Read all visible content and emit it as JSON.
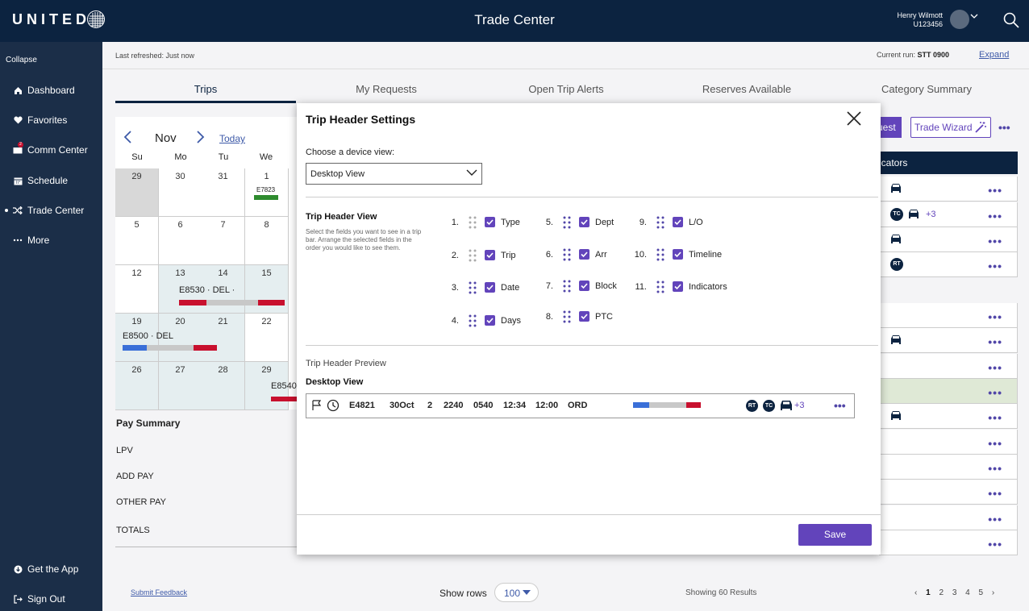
{
  "header": {
    "logo": "UNITED",
    "title": "Trade Center",
    "user_name": "Henry Wilmott",
    "user_id": "U123456"
  },
  "sidebar": {
    "collapse": "Collapse",
    "items": [
      {
        "label": "Dashboard",
        "icon": "home-icon"
      },
      {
        "label": "Favorites",
        "icon": "heart-icon"
      },
      {
        "label": "Comm Center",
        "icon": "mail-icon",
        "badge": "2"
      },
      {
        "label": "Schedule",
        "icon": "calendar-icon"
      },
      {
        "label": "Trade Center",
        "icon": "trade-icon"
      },
      {
        "label": "More",
        "icon": "more-icon"
      }
    ],
    "get_app": "Get the App",
    "sign_out": "Sign Out"
  },
  "subbar": {
    "last_refreshed": "Last refreshed: Just now",
    "current_run_label": "Current run:",
    "current_run_value": "STT 0900",
    "expand": "Expand"
  },
  "tabs": [
    "Trips",
    "My Requests",
    "Open Trip Alerts",
    "Reserves Available",
    "Category Summary"
  ],
  "calendar": {
    "month": "Nov",
    "today": "Today",
    "days_of_week": [
      "Su",
      "Mo",
      "Tu",
      "We"
    ],
    "weeks": [
      [
        "29",
        "30",
        "31",
        "1"
      ],
      [
        "5",
        "6",
        "7",
        "8"
      ],
      [
        "12",
        "13",
        "14",
        "15"
      ],
      [
        "19",
        "20",
        "21",
        "22"
      ],
      [
        "26",
        "27",
        "28",
        "29"
      ]
    ],
    "trips": [
      "E7823",
      "E8530 · DEL ·",
      "E8500 · DEL",
      "E8540"
    ]
  },
  "pay_summary": {
    "title": "Pay Summary",
    "rows": [
      "LPV",
      "ADD PAY",
      "OTHER PAY",
      "TOTALS"
    ]
  },
  "right_panel": {
    "request_btn": "uest",
    "wizard_btn": "Trade Wizard",
    "indicators_header": "icators",
    "more_badge": "+3"
  },
  "footer": {
    "submit_feedback": "Submit Feedback",
    "show_rows": "Show rows",
    "rows_value": "100",
    "showing": "Showing 60 Results",
    "pages": [
      "1",
      "2",
      "3",
      "4",
      "5"
    ]
  },
  "modal": {
    "title": "Trip Header Settings",
    "device_label": "Choose a device view:",
    "device_value": "Desktop View",
    "view_title": "Trip Header View",
    "view_desc": "Select the fields you want to see in a trip bar. Arrange the selected fields in the order you would like to see them.",
    "fields": [
      {
        "num": "1.",
        "label": "Type"
      },
      {
        "num": "2.",
        "label": "Trip"
      },
      {
        "num": "3.",
        "label": "Date"
      },
      {
        "num": "4.",
        "label": "Days"
      },
      {
        "num": "5.",
        "label": "Dept"
      },
      {
        "num": "6.",
        "label": "Arr"
      },
      {
        "num": "7.",
        "label": "Block"
      },
      {
        "num": "8.",
        "label": "PTC"
      },
      {
        "num": "9.",
        "label": "L/O"
      },
      {
        "num": "10.",
        "label": "Timeline"
      },
      {
        "num": "11.",
        "label": "Indicators"
      }
    ],
    "preview_title": "Trip Header Preview",
    "preview_sub": "Desktop View",
    "preview": {
      "trip": "E4821",
      "date": "30Oct",
      "days": "2",
      "dept": "2240",
      "arr": "0540",
      "block": "12:34",
      "ptc": "12:00",
      "lo": "ORD",
      "badges": [
        "RT",
        "TC"
      ],
      "more": "+3"
    },
    "save": "Save"
  },
  "colors": {
    "navy": "#0c2340",
    "sidebar": "#1b2e48",
    "accent": "#6244bb",
    "link": "#3e5aa8",
    "trip_red": "#c8102e",
    "trip_blue": "#3a6fd8",
    "trip_green": "#2e8b2e"
  }
}
